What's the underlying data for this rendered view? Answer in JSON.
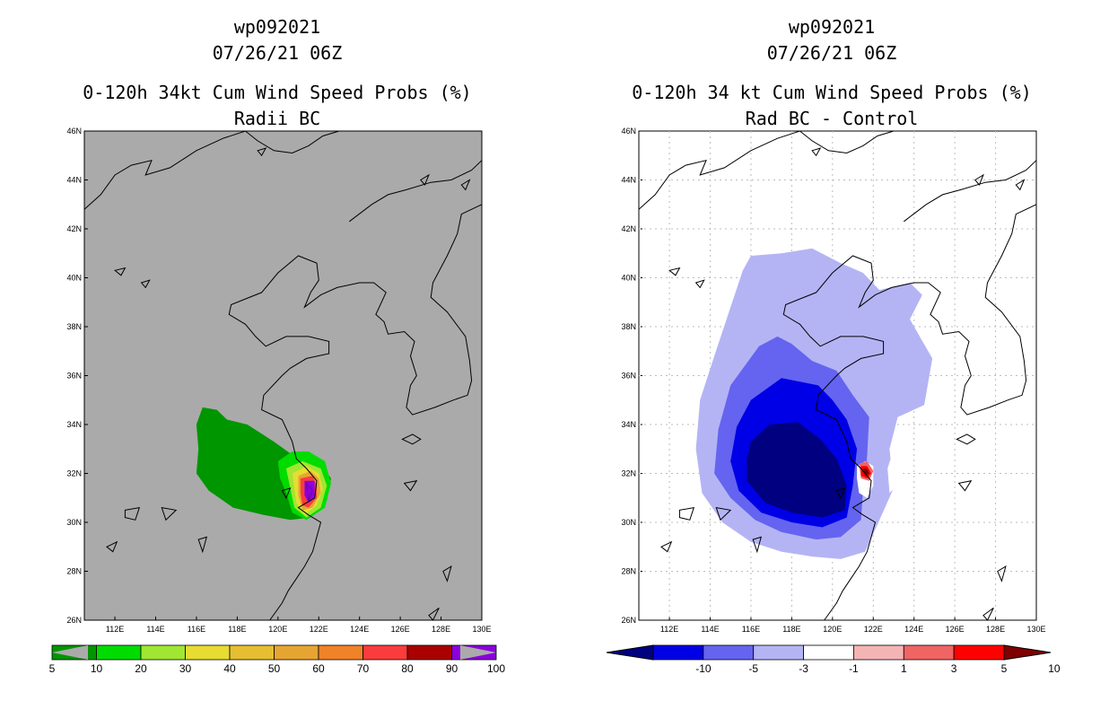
{
  "chart_data": [
    {
      "type": "heatmap",
      "storm_id": "wp092021",
      "datetime": "07/26/21 06Z",
      "title": "0-120h 34kt Cum Wind Speed Probs (%)",
      "subtitle": "Radii BC",
      "xlim": [
        110.5,
        130
      ],
      "ylim": [
        26,
        46
      ],
      "x_ticks": [
        "112E",
        "114E",
        "116E",
        "118E",
        "120E",
        "122E",
        "124E",
        "126E",
        "128E",
        "130E"
      ],
      "y_ticks": [
        "26N",
        "28N",
        "30N",
        "32N",
        "34N",
        "36N",
        "38N",
        "40N",
        "42N",
        "44N",
        "46N"
      ],
      "grid": false,
      "colorbar": {
        "levels": [
          "5",
          "10",
          "20",
          "30",
          "40",
          "50",
          "60",
          "70",
          "80",
          "90",
          "100"
        ],
        "colors": [
          "#009600",
          "#00dc00",
          "#a0e632",
          "#e6dc32",
          "#e6be32",
          "#e6a532",
          "#f08228",
          "#fa3c3c",
          "#aa0000",
          "#8c00dc"
        ]
      },
      "features": [
        {
          "label": "5-10%",
          "extent_lon": [
            116,
            122.6
          ],
          "extent_lat": [
            30,
            34.7
          ]
        },
        {
          "label": "max >=90%",
          "center_lon": 121.5,
          "center_lat": 31.2
        }
      ]
    },
    {
      "type": "heatmap",
      "storm_id": "wp092021",
      "datetime": "07/26/21 06Z",
      "title": "0-120h 34 kt Cum Wind Speed Probs (%)",
      "subtitle": "Rad BC - Control",
      "xlim": [
        110.5,
        130
      ],
      "ylim": [
        26,
        46
      ],
      "x_ticks": [
        "112E",
        "114E",
        "116E",
        "118E",
        "120E",
        "122E",
        "124E",
        "126E",
        "128E",
        "130E"
      ],
      "y_ticks": [
        "26N",
        "28N",
        "30N",
        "32N",
        "34N",
        "36N",
        "38N",
        "40N",
        "42N",
        "44N",
        "46N"
      ],
      "grid": true,
      "colorbar": {
        "levels": [
          "-10",
          "-5",
          "-3",
          "-1",
          "1",
          "3",
          "5",
          "10"
        ],
        "colors": [
          "#000080",
          "#0000e6",
          "#6464f0",
          "#b4b4f5",
          "#ffffff",
          "#f5b4b4",
          "#f06464",
          "#ff0000",
          "#800000"
        ]
      },
      "features": [
        {
          "label": "-1 to -3 difference",
          "extent_lon": [
            113.3,
            124.9
          ],
          "extent_lat": [
            28.5,
            41.2
          ]
        },
        {
          "label": "< -10 difference",
          "center_lon": 118.5,
          "center_lat": 31.7
        },
        {
          "label": "> 10 difference",
          "center_lon": 121.6,
          "center_lat": 32.0
        }
      ]
    }
  ]
}
